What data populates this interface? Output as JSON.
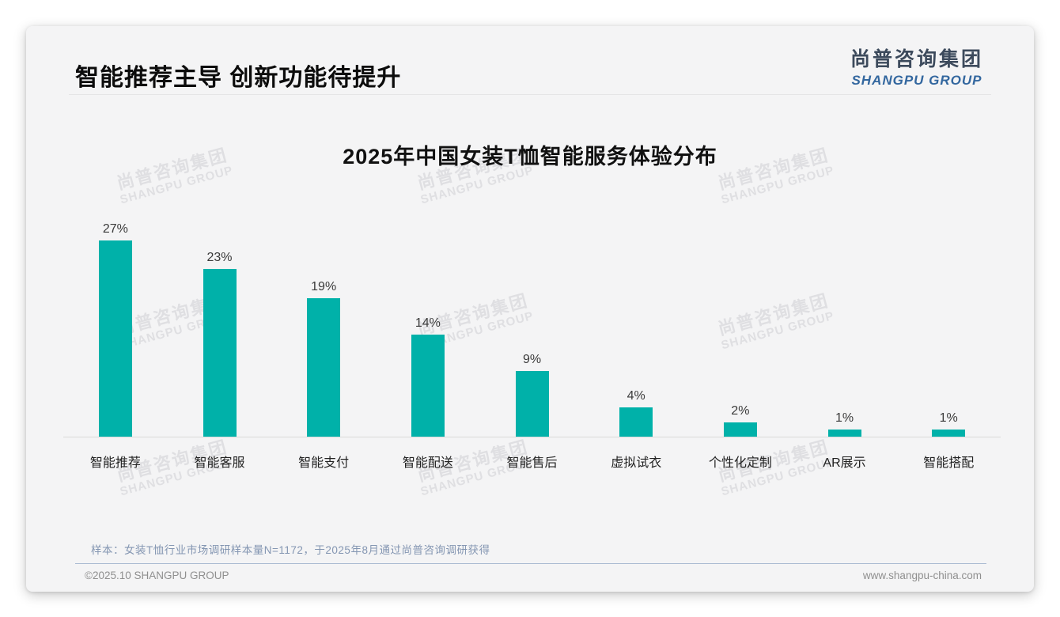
{
  "header": {
    "title": "智能推荐主导 创新功能待提升"
  },
  "logo": {
    "cn": "尚普咨询集团",
    "en": "SHANGPU GROUP"
  },
  "watermark": {
    "line1": "尚普咨询集团",
    "line2": "SHANGPU GROUP"
  },
  "chart_data": {
    "type": "bar",
    "title": "2025年中国女装T恤智能服务体验分布",
    "categories": [
      "智能推荐",
      "智能客服",
      "智能支付",
      "智能配送",
      "智能售后",
      "虚拟试衣",
      "个性化定制",
      "AR展示",
      "智能搭配"
    ],
    "values": [
      27,
      23,
      19,
      14,
      9,
      4,
      2,
      1,
      1
    ],
    "value_labels": [
      "27%",
      "23%",
      "19%",
      "14%",
      "9%",
      "4%",
      "2%",
      "1%",
      "1%"
    ],
    "unit": "%",
    "bar_color": "#00b1a9",
    "ylim": [
      0,
      30
    ],
    "grid": false,
    "legend": "none",
    "value_label_position": "above-bars"
  },
  "footnote": {
    "text": "样本：女装T恤行业市场调研样本量N=1172，于2025年8月通过尚普咨询调研获得"
  },
  "footer": {
    "copyright": "©2025.10 SHANGPU GROUP",
    "website": "www.shangpu-china.com"
  },
  "colors": {
    "bar": "#00b1a9",
    "card_background": "#f4f4f5",
    "logo_blue": "#33679f",
    "footnote_text": "#8496b2"
  }
}
